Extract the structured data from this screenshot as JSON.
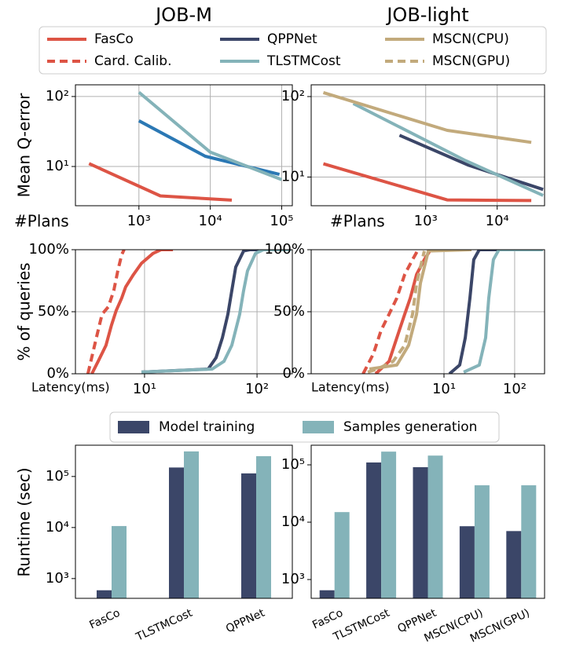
{
  "chart_data": [
    {
      "type": "line",
      "title": "JOB-M",
      "ylabel": "Mean Q-error",
      "xlabel": "#Plans",
      "xlog": true,
      "ylog": true,
      "grid": true,
      "xlim": [
        129,
        141000
      ],
      "ylim": [
        2.75,
        147
      ],
      "xticks": [
        {
          "value": 1000,
          "label": "10³"
        },
        {
          "value": 10000,
          "label": "10⁴"
        },
        {
          "value": 100000,
          "label": "10⁵"
        }
      ],
      "yticks": [
        {
          "value": 10,
          "label": "10¹"
        },
        {
          "value": 100,
          "label": "10²"
        }
      ],
      "series": [
        {
          "name": "FasCo",
          "color": "#dd5445",
          "x": [
            200,
            2000,
            20000
          ],
          "values": [
            11,
            3.8,
            3.3
          ]
        },
        {
          "name": "QPPNet",
          "color": "#2b78b4",
          "x": [
            1000,
            8500,
            93000
          ],
          "values": [
            45,
            14,
            7.7
          ]
        },
        {
          "name": "TLSTMCost",
          "color": "#84b3b9",
          "x": [
            1000,
            10000,
            100000
          ],
          "values": [
            115,
            16,
            6.5
          ]
        }
      ]
    },
    {
      "type": "line",
      "title": "JOB-light",
      "xlabel": "#Plans",
      "xlog": true,
      "ylog": true,
      "grid": true,
      "xlim": [
        25,
        46000
      ],
      "ylim": [
        4.4,
        140
      ],
      "xticks": [
        {
          "value": 1000,
          "label": "10³"
        },
        {
          "value": 10000,
          "label": "10⁴"
        }
      ],
      "yticks": [
        {
          "value": 10,
          "label": "10¹"
        },
        {
          "value": 100,
          "label": "10²"
        }
      ],
      "series": [
        {
          "name": "FasCo",
          "color": "#dd5445",
          "x": [
            37,
            2000,
            30000
          ],
          "values": [
            14.6,
            5.2,
            5.1
          ]
        },
        {
          "name": "QPPNet",
          "color": "#3b4668",
          "x": [
            430,
            4000,
            44000
          ],
          "values": [
            33,
            14,
            7
          ]
        },
        {
          "name": "TLSTMCost",
          "color": "#84b3b9",
          "x": [
            97,
            3600,
            44000
          ],
          "values": [
            82,
            16,
            5.9
          ]
        },
        {
          "name": "MSCN(CPU)",
          "color": "#c2aa7c",
          "x": [
            37,
            2000,
            30000
          ],
          "values": [
            112,
            38,
            27
          ]
        }
      ]
    },
    {
      "type": "line",
      "ylabel": "% of queries",
      "xlabel": "Latency(ms)",
      "xlog": true,
      "grid": true,
      "xlim": [
        2.43,
        206
      ],
      "ylim": [
        0,
        100
      ],
      "xticks": [
        {
          "value": 10,
          "label": "10¹"
        },
        {
          "value": 100,
          "label": "10²"
        }
      ],
      "yticks": [
        {
          "value": 0,
          "label": "0%"
        },
        {
          "value": 50,
          "label": "50%"
        },
        {
          "value": 100,
          "label": "100%"
        }
      ],
      "series": [
        {
          "name": "FasCo",
          "color": "#dd5445",
          "x": [
            3.4,
            3.87,
            4.54,
            5.08,
            5.6,
            6.27,
            6.79,
            7.98,
            9.38,
            11.9,
            14.0,
            17.9
          ],
          "values": [
            0,
            10,
            23,
            39,
            51,
            61,
            70,
            80,
            89,
            97,
            100,
            100
          ]
        },
        {
          "name": "Card. Calib.",
          "color": "#dd5445",
          "linestyle": "dashed",
          "x": [
            3.14,
            3.45,
            3.87,
            4.19,
            4.77,
            5.33,
            5.78,
            6.27,
            6.58
          ],
          "values": [
            0,
            16,
            35,
            48,
            54,
            67,
            83,
            96,
            100
          ]
        },
        {
          "name": "QPPNet",
          "color": "#3b4668",
          "x": [
            9.38,
            36.8,
            43.3,
            49.2,
            55.1,
            59.7,
            64.7,
            76.0,
            86.5,
            200
          ],
          "values": [
            1.3,
            3.8,
            13,
            29,
            48,
            67,
            86,
            99,
            100,
            100
          ]
        },
        {
          "name": "TLSTMCost",
          "color": "#84b3b9",
          "x": [
            9.38,
            39.9,
            50.8,
            59.7,
            70.1,
            76.0,
            82.4,
            96.8,
            114,
            200
          ],
          "values": [
            1.3,
            3.8,
            10,
            23,
            48,
            67,
            83,
            97,
            100,
            100
          ]
        }
      ]
    },
    {
      "type": "line",
      "xlabel": "Latency(ms)",
      "xlog": true,
      "grid": true,
      "xlim": [
        0.132,
        265
      ],
      "ylim": [
        0,
        100
      ],
      "xticks": [
        {
          "value": 10,
          "label": "10¹"
        },
        {
          "value": 100,
          "label": "10²"
        }
      ],
      "yticks": [
        {
          "value": 0,
          "label": "0%"
        },
        {
          "value": 50,
          "label": "50%"
        },
        {
          "value": 100,
          "label": "100%"
        }
      ],
      "series": [
        {
          "name": "FasCo",
          "color": "#dd5445",
          "x": [
            1.08,
            1.67,
            2.15,
            2.78,
            3.33,
            4.09,
            5.27,
            6.47,
            8.8
          ],
          "values": [
            0,
            10,
            29,
            48,
            61,
            80,
            92,
            100,
            100
          ]
        },
        {
          "name": "Card. Calib.",
          "color": "#dd5445",
          "linestyle": "dashed",
          "x": [
            0.718,
            1.0,
            1.29,
            1.67,
            2.15,
            2.78,
            3.59,
            4.3
          ],
          "values": [
            0,
            16,
            35,
            48,
            61,
            80,
            92,
            100
          ]
        },
        {
          "name": "MSCN(CPU)",
          "color": "#c2aa7c",
          "x": [
            0.88,
            2.15,
            3.16,
            4.09,
            4.64,
            6.0,
            24.5
          ],
          "values": [
            3.8,
            7,
            23,
            48,
            73,
            99,
            100
          ]
        },
        {
          "name": "MSCN(GPU)",
          "color": "#c2aa7c",
          "linestyle": "dashed",
          "x": [
            0.836,
            1.14,
            1.9,
            2.78,
            3.59,
            4.09,
            5.27
          ],
          "values": [
            1.3,
            3.8,
            10,
            23,
            48,
            73,
            99
          ]
        },
        {
          "name": "QPPNet",
          "color": "#3b4668",
          "x": [
            11.96,
            16.7,
            20.0,
            23.3,
            26.4,
            31.6,
            250
          ],
          "values": [
            0,
            7,
            29,
            61,
            92,
            100,
            100
          ]
        },
        {
          "name": "TLSTMCost",
          "color": "#84b3b9",
          "x": [
            19.0,
            31.6,
            38.8,
            43.0,
            50.1,
            59.9,
            250
          ],
          "values": [
            1.3,
            7,
            29,
            61,
            92,
            100,
            100
          ]
        }
      ]
    },
    {
      "type": "bar",
      "ylabel": "Runtime (sec)",
      "ylog": true,
      "grid": false,
      "ylim": [
        410,
        410000
      ],
      "yticks": [
        {
          "value": 1000,
          "label": "10³"
        },
        {
          "value": 10000,
          "label": "10⁴"
        },
        {
          "value": 100000,
          "label": "10⁵"
        }
      ],
      "categories": [
        "FasCo",
        "TLSTMCost",
        "QPPNet"
      ],
      "series": [
        {
          "name": "Model training",
          "color": "#3b4668",
          "values": [
            590,
            150000,
            115000
          ]
        },
        {
          "name": "Samples generation",
          "color": "#84b3b9",
          "values": [
            10700,
            310000,
            250000
          ]
        }
      ]
    },
    {
      "type": "bar",
      "ylog": true,
      "grid": false,
      "ylim": [
        470,
        220000
      ],
      "yticks": [
        {
          "value": 1000,
          "label": "10³"
        },
        {
          "value": 10000,
          "label": "10⁴"
        },
        {
          "value": 100000,
          "label": "10⁵"
        }
      ],
      "categories": [
        "FasCo",
        "TLSTMCost",
        "QPPNet",
        "MSCN(CPU)",
        "MSCN(GPU)"
      ],
      "series": [
        {
          "name": "Model training",
          "color": "#3b4668",
          "values": [
            650,
            110000,
            91000,
            8500,
            7000
          ]
        },
        {
          "name": "Samples generation",
          "color": "#84b3b9",
          "values": [
            15000,
            170000,
            145000,
            44000,
            44000
          ]
        }
      ]
    }
  ]
}
